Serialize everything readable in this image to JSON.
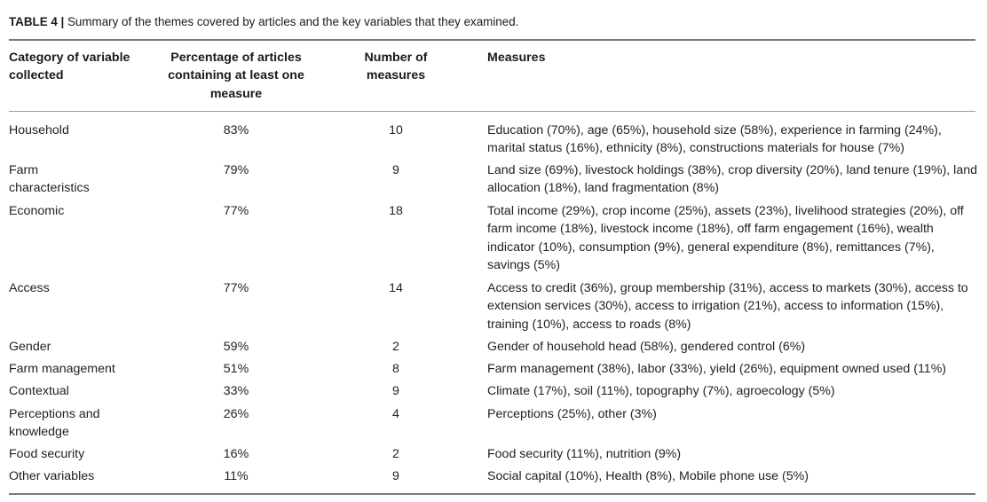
{
  "caption": {
    "label": "TABLE 4 |",
    "text": " Summary of the themes covered by articles and the key variables that they examined."
  },
  "headers": {
    "category": "Category of variable collected",
    "percentage": "Percentage of articles containing at least one measure",
    "number": "Number of measures",
    "measures": "Measures"
  },
  "rows": [
    {
      "category": "Household",
      "percentage": "83%",
      "number": "10",
      "measures": "Education (70%), age (65%), household size (58%), experience in farming (24%), marital status (16%), ethnicity (8%), constructions materials for house (7%)"
    },
    {
      "category": "Farm characteristics",
      "percentage": "79%",
      "number": "9",
      "measures": "Land size (69%), livestock holdings (38%), crop diversity (20%), land tenure (19%), land allocation (18%), land fragmentation (8%)"
    },
    {
      "category": "Economic",
      "percentage": "77%",
      "number": "18",
      "measures": "Total income (29%), crop income (25%), assets (23%), livelihood strategies (20%), off farm income (18%), livestock income (18%), off farm engagement (16%), wealth indicator (10%), consumption (9%), general expenditure (8%), remittances (7%), savings (5%)"
    },
    {
      "category": "Access",
      "percentage": "77%",
      "number": "14",
      "measures": "Access to credit (36%), group membership (31%), access to markets (30%), access to extension services (30%), access to irrigation (21%), access to information (15%), training (10%), access to roads (8%)"
    },
    {
      "category": "Gender",
      "percentage": "59%",
      "number": "2",
      "measures": "Gender of household head (58%), gendered control (6%)"
    },
    {
      "category": "Farm management",
      "percentage": "51%",
      "number": "8",
      "measures": "Farm management (38%), labor (33%), yield (26%), equipment owned used (11%)"
    },
    {
      "category": "Contextual",
      "percentage": "33%",
      "number": "9",
      "measures": "Climate (17%), soil (11%), topography (7%), agroecology (5%)"
    },
    {
      "category": "Perceptions and knowledge",
      "percentage": "26%",
      "number": "4",
      "measures": "Perceptions (25%), other (3%)"
    },
    {
      "category": "Food security",
      "percentage": "16%",
      "number": "2",
      "measures": "Food security (11%), nutrition (9%)"
    },
    {
      "category": "Other variables",
      "percentage": "11%",
      "number": "9",
      "measures": "Social capital (10%), Health (8%), Mobile phone use (5%)"
    }
  ]
}
